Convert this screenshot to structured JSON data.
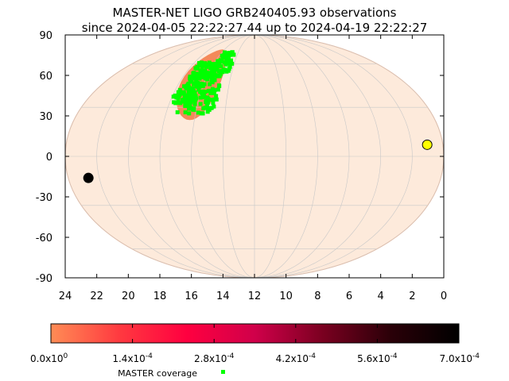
{
  "title_line1": "MASTER-NET LIGO GRB240405.93 observations",
  "title_line2": "since 2024-04-05 22:22:27.44 up to 2024-04-19 22:22:27",
  "legend_label": "MASTER coverage",
  "colors": {
    "sky_fill": "#fdeadb",
    "grid": "#c8c8c8",
    "coverage": "#00ff00",
    "probability_region": "#f4895a",
    "sun_marker": "#ffff00",
    "moon_marker": "#000000",
    "colorbar": [
      "#ff8c55",
      "#ff3a40",
      "#ff0040",
      "#d0004a",
      "#7a0020",
      "#2a0008",
      "#000000"
    ]
  },
  "chart_data": {
    "type": "scatter",
    "projection": "mollweide",
    "x_axis": {
      "label": "",
      "unit": "hours",
      "range": [
        24,
        0
      ],
      "ticks": [
        "24",
        "22",
        "20",
        "18",
        "16",
        "14",
        "12",
        "10",
        "8",
        "6",
        "4",
        "2",
        "0"
      ]
    },
    "y_axis": {
      "label": "",
      "unit": "degrees",
      "range": [
        -90,
        90
      ],
      "ticks": [
        "90",
        "60",
        "30",
        "0",
        "-30",
        "-60",
        "-90"
      ]
    },
    "grid": true,
    "probability_region": {
      "ra_center_h": 16.3,
      "dec_center": 48,
      "ra_half_width_h": 1.6,
      "dec_range": [
        22,
        72
      ]
    },
    "coverage_points": {
      "name": "MASTER coverage",
      "clusters": [
        {
          "ra_h": 16.0,
          "dec": 40,
          "ra_spread_h": 1.3,
          "dec_spread": 14
        },
        {
          "ra_h": 17.3,
          "dec": 38,
          "ra_spread_h": 0.6,
          "dec_spread": 6
        },
        {
          "ra_h": 15.0,
          "dec": 62,
          "ra_spread_h": 0.8,
          "dec_spread": 8
        },
        {
          "ra_h": 16.5,
          "dec": 55,
          "ra_spread_h": 1.0,
          "dec_spread": 6
        }
      ]
    },
    "markers": [
      {
        "name": "sun",
        "ra_h": 1.0,
        "dec": 7
      },
      {
        "name": "moon",
        "ra_h": 22.7,
        "dec": -13
      }
    ],
    "colorbar": {
      "min": 0.0,
      "max": 0.0007,
      "ticks": [
        {
          "base": "0.0x10",
          "exp": "0"
        },
        {
          "base": "1.4x10",
          "exp": "-4"
        },
        {
          "base": "2.8x10",
          "exp": "-4"
        },
        {
          "base": "4.2x10",
          "exp": "-4"
        },
        {
          "base": "5.6x10",
          "exp": "-4"
        },
        {
          "base": "7.0x10",
          "exp": "-4"
        }
      ]
    }
  }
}
